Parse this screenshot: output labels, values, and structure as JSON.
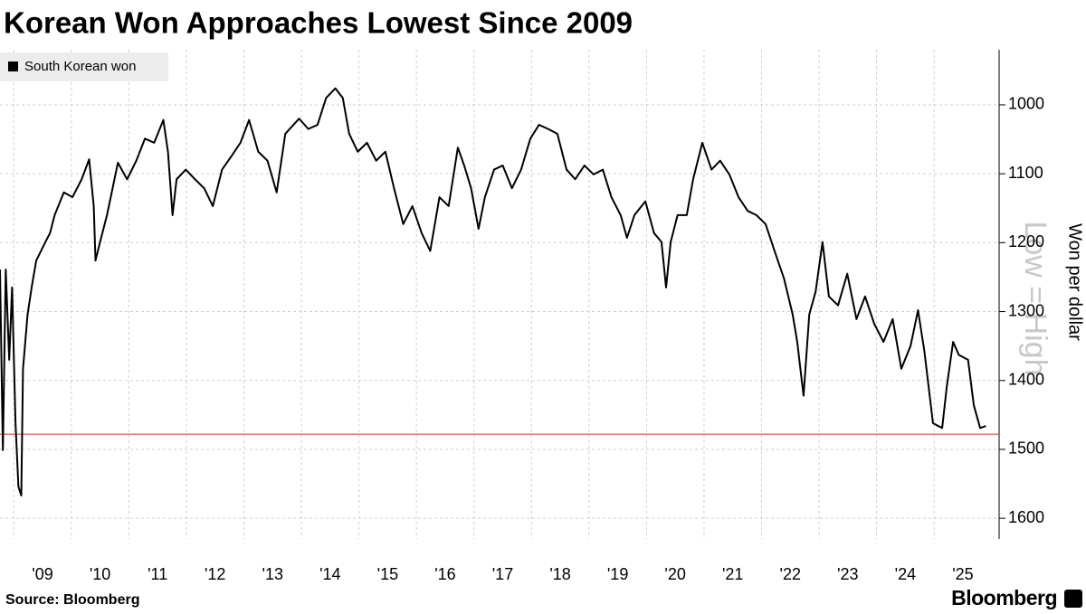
{
  "chart_data": {
    "type": "line",
    "title": "Korean Won Approaches Lowest Since 2009",
    "y_label": "Won per dollar",
    "annotation": "Low = High",
    "source": "Source: Bloomberg",
    "brand": "Bloomberg",
    "legend": "top-left",
    "grid": true,
    "y_inverted": true,
    "y_axis_side": "right",
    "xlim": [
      2008.76,
      2026.13
    ],
    "xticks": [
      {
        "value": 2009,
        "label": "'09"
      },
      {
        "value": 2010,
        "label": "'10"
      },
      {
        "value": 2011,
        "label": "'11"
      },
      {
        "value": 2012,
        "label": "'12"
      },
      {
        "value": 2013,
        "label": "'13"
      },
      {
        "value": 2014,
        "label": "'14"
      },
      {
        "value": 2015,
        "label": "'15"
      },
      {
        "value": 2016,
        "label": "'16"
      },
      {
        "value": 2017,
        "label": "'17"
      },
      {
        "value": 2018,
        "label": "'18"
      },
      {
        "value": 2019,
        "label": "'19"
      },
      {
        "value": 2020,
        "label": "'20"
      },
      {
        "value": 2021,
        "label": "'21"
      },
      {
        "value": 2022,
        "label": "'22"
      },
      {
        "value": 2023,
        "label": "'23"
      },
      {
        "value": 2024,
        "label": "'24"
      },
      {
        "value": 2025,
        "label": "'25"
      }
    ],
    "ylim": [
      920,
      1630
    ],
    "yticks": [
      1000,
      1100,
      1200,
      1300,
      1400,
      1500,
      1600
    ],
    "reference_line": {
      "value": 1478,
      "color": "#e0302a"
    },
    "series": [
      {
        "name": "South Korean won",
        "color": "#000000",
        "x": [
          2008.76,
          2008.81,
          2008.86,
          2008.92,
          2008.97,
          2009.03,
          2009.08,
          2009.13,
          2009.16,
          2009.24,
          2009.31,
          2009.39,
          2009.55,
          2009.63,
          2009.71,
          2009.87,
          2010.02,
          2010.18,
          2010.31,
          2010.39,
          2010.42,
          2010.5,
          2010.62,
          2010.81,
          2010.97,
          2011.13,
          2011.28,
          2011.44,
          2011.6,
          2011.68,
          2011.76,
          2011.83,
          2011.99,
          2012.15,
          2012.31,
          2012.46,
          2012.62,
          2012.78,
          2012.94,
          2013.09,
          2013.25,
          2013.41,
          2013.57,
          2013.72,
          2013.96,
          2014.12,
          2014.28,
          2014.43,
          2014.59,
          2014.72,
          2014.83,
          2014.98,
          2015.14,
          2015.3,
          2015.46,
          2015.61,
          2015.77,
          2015.93,
          2016.09,
          2016.24,
          2016.4,
          2016.56,
          2016.72,
          2016.83,
          2016.95,
          2017.08,
          2017.19,
          2017.35,
          2017.5,
          2017.66,
          2017.82,
          2017.98,
          2018.13,
          2018.29,
          2018.45,
          2018.61,
          2018.76,
          2018.92,
          2019.08,
          2019.24,
          2019.39,
          2019.55,
          2019.66,
          2019.79,
          2019.98,
          2020.13,
          2020.26,
          2020.34,
          2020.42,
          2020.54,
          2020.7,
          2020.81,
          2020.97,
          2021.13,
          2021.28,
          2021.44,
          2021.6,
          2021.76,
          2021.91,
          2022.07,
          2022.23,
          2022.39,
          2022.54,
          2022.62,
          2022.73,
          2022.83,
          2022.94,
          2023.06,
          2023.17,
          2023.33,
          2023.49,
          2023.65,
          2023.8,
          2023.96,
          2024.12,
          2024.28,
          2024.43,
          2024.59,
          2024.72,
          2024.83,
          2024.98,
          2025.14,
          2025.22,
          2025.33,
          2025.43,
          2025.59,
          2025.69,
          2025.8,
          2025.9
        ],
        "values": [
          1239,
          1501,
          1239,
          1370,
          1265,
          1462,
          1554,
          1567,
          1383,
          1304,
          1265,
          1226,
          1199,
          1186,
          1160,
          1127,
          1134,
          1108,
          1079,
          1147,
          1226,
          1199,
          1160,
          1084,
          1108,
          1081,
          1049,
          1055,
          1022,
          1068,
          1160,
          1108,
          1094,
          1108,
          1121,
          1147,
          1094,
          1075,
          1055,
          1022,
          1068,
          1081,
          1127,
          1042,
          1020,
          1035,
          1029,
          990,
          976,
          990,
          1042,
          1068,
          1055,
          1081,
          1068,
          1121,
          1173,
          1147,
          1186,
          1212,
          1134,
          1147,
          1062,
          1088,
          1121,
          1180,
          1134,
          1094,
          1088,
          1121,
          1094,
          1049,
          1029,
          1035,
          1042,
          1094,
          1108,
          1088,
          1101,
          1094,
          1134,
          1160,
          1193,
          1160,
          1140,
          1186,
          1199,
          1265,
          1199,
          1160,
          1160,
          1108,
          1055,
          1094,
          1081,
          1101,
          1134,
          1154,
          1160,
          1173,
          1213,
          1252,
          1304,
          1344,
          1422,
          1304,
          1271,
          1199,
          1278,
          1291,
          1245,
          1311,
          1278,
          1318,
          1344,
          1311,
          1383,
          1350,
          1298,
          1357,
          1462,
          1469,
          1409,
          1344,
          1363,
          1370,
          1436,
          1469,
          1466
        ]
      }
    ]
  }
}
